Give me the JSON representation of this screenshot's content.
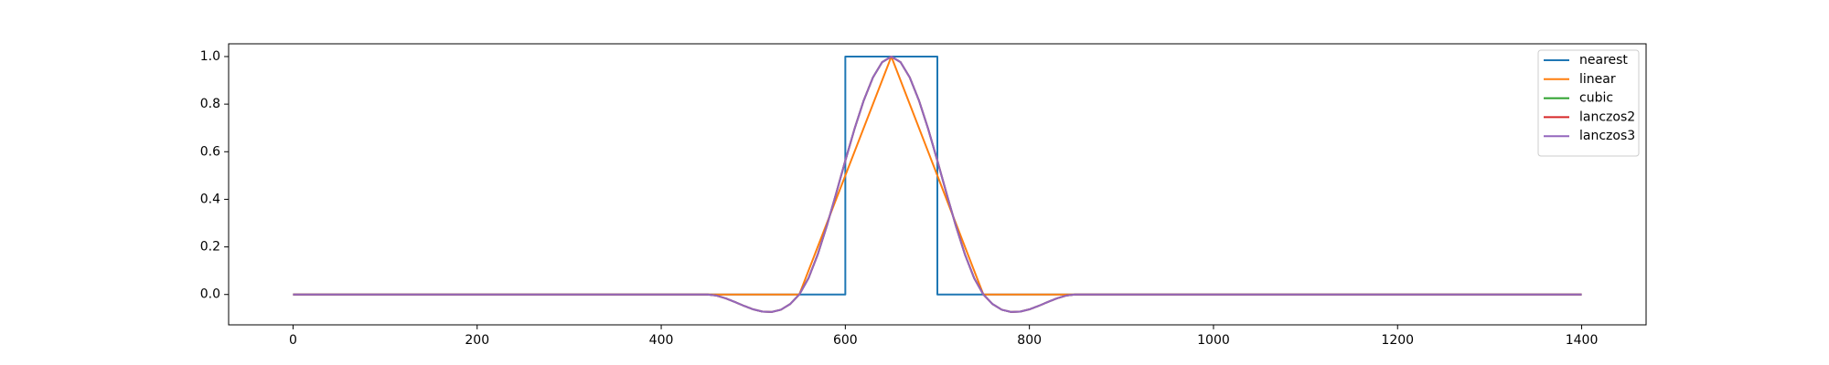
{
  "chart_data": {
    "type": "line",
    "xlim": [
      -70,
      1470
    ],
    "ylim": [
      -0.1276,
      1.0536
    ],
    "xticks": [
      0,
      200,
      400,
      600,
      800,
      1000,
      1200,
      1400
    ],
    "yticks": [
      {
        "value": 0,
        "label": "0.0"
      },
      {
        "value": 0.2,
        "label": "0.2"
      },
      {
        "value": 0.4,
        "label": "0.4"
      },
      {
        "value": 0.6,
        "label": "0.6"
      },
      {
        "value": 0.8,
        "label": "0.8"
      },
      {
        "value": 1,
        "label": "1.0"
      }
    ],
    "legend": "upper right",
    "series": [
      {
        "name": "nearest",
        "color": "#1f77b4",
        "x": [
          0,
          600,
          600,
          700,
          700,
          1400
        ],
        "values": [
          0,
          0,
          1,
          1,
          0,
          0
        ]
      },
      {
        "name": "linear",
        "color": "#ff7f0e",
        "x": [
          0,
          550,
          650,
          750,
          1400
        ],
        "values": [
          0,
          0,
          1,
          0,
          0
        ]
      },
      {
        "name": "cubic",
        "color": "#2ca02c",
        "x": [
          0,
          450,
          460,
          470,
          480,
          490,
          500,
          510,
          520,
          530,
          540,
          550,
          560,
          570,
          580,
          590,
          600,
          610,
          620,
          630,
          640,
          650,
          660,
          670,
          680,
          690,
          700,
          710,
          720,
          730,
          740,
          750,
          760,
          770,
          780,
          790,
          800,
          810,
          820,
          830,
          840,
          850,
          1400
        ],
        "values": [
          0,
          0,
          -0.0045,
          -0.016,
          -0.0315,
          -0.048,
          -0.0625,
          -0.072,
          -0.0735,
          -0.064,
          -0.0405,
          0,
          0.0685,
          0.168,
          0.2895,
          0.424,
          0.5625,
          0.696,
          0.8155,
          0.912,
          0.9765,
          1,
          0.9765,
          0.912,
          0.8155,
          0.696,
          0.5625,
          0.424,
          0.2895,
          0.168,
          0.0685,
          0,
          -0.0405,
          -0.064,
          -0.0735,
          -0.072,
          -0.0625,
          -0.048,
          -0.0315,
          -0.016,
          -0.0045,
          0,
          0
        ]
      },
      {
        "name": "lanczos2",
        "color": "#d62728",
        "x": [
          0,
          450,
          460,
          470,
          480,
          490,
          500,
          510,
          520,
          530,
          540,
          550,
          560,
          570,
          580,
          590,
          600,
          610,
          620,
          630,
          640,
          650,
          660,
          670,
          680,
          690,
          700,
          710,
          720,
          730,
          740,
          750,
          760,
          770,
          780,
          790,
          800,
          810,
          820,
          830,
          840,
          850,
          1400
        ],
        "values": [
          0,
          0,
          -0.0045,
          -0.016,
          -0.0315,
          -0.048,
          -0.0625,
          -0.072,
          -0.0735,
          -0.064,
          -0.0405,
          0,
          0.0685,
          0.168,
          0.2895,
          0.424,
          0.5625,
          0.696,
          0.8155,
          0.912,
          0.9765,
          1,
          0.9765,
          0.912,
          0.8155,
          0.696,
          0.5625,
          0.424,
          0.2895,
          0.168,
          0.0685,
          0,
          -0.0405,
          -0.064,
          -0.0735,
          -0.072,
          -0.0625,
          -0.048,
          -0.0315,
          -0.016,
          -0.0045,
          0,
          0
        ]
      },
      {
        "name": "lanczos3",
        "color": "#9467bd",
        "x": [
          0,
          450,
          460,
          470,
          480,
          490,
          500,
          510,
          520,
          530,
          540,
          550,
          560,
          570,
          580,
          590,
          600,
          610,
          620,
          630,
          640,
          650,
          660,
          670,
          680,
          690,
          700,
          710,
          720,
          730,
          740,
          750,
          760,
          770,
          780,
          790,
          800,
          810,
          820,
          830,
          840,
          850,
          1400
        ],
        "values": [
          0,
          0,
          -0.0045,
          -0.016,
          -0.0315,
          -0.048,
          -0.0625,
          -0.072,
          -0.0735,
          -0.064,
          -0.0405,
          0,
          0.0685,
          0.168,
          0.2895,
          0.424,
          0.5625,
          0.696,
          0.8155,
          0.912,
          0.9765,
          1,
          0.9765,
          0.912,
          0.8155,
          0.696,
          0.5625,
          0.424,
          0.2895,
          0.168,
          0.0685,
          0,
          -0.0405,
          -0.064,
          -0.0735,
          -0.072,
          -0.0625,
          -0.048,
          -0.0315,
          -0.016,
          -0.0045,
          0,
          0
        ]
      }
    ]
  }
}
